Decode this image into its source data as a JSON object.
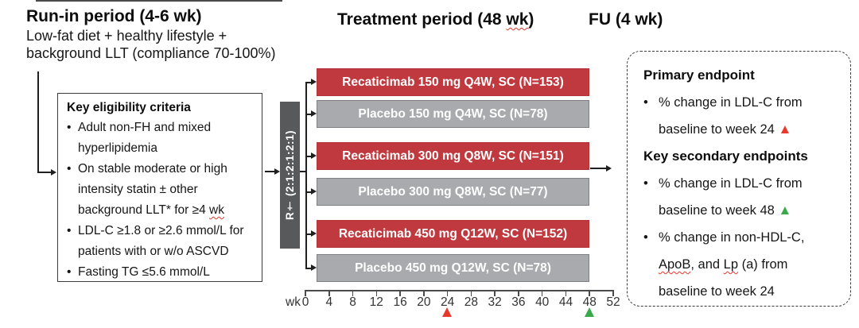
{
  "header": {
    "runin_title": "Run-in period (4-6 wk)",
    "runin_sub1": "Low-fat diet + healthy lifestyle +",
    "runin_sub2": "background LLT (compliance 70-100%)",
    "treatment_title_pre": "Treatment period (48 ",
    "treatment_title_sq": "wk",
    "treatment_title_post": ")",
    "fu_title": "FU (4 wk)"
  },
  "eligibility": {
    "title": "Key eligibility criteria",
    "bullets": [
      [
        {
          "t": "Adult non-FH and mixed hyperlipidemia"
        }
      ],
      [
        {
          "t": "On stable moderate or high intensity statin ± other background LLT* for ≥4 "
        },
        {
          "t": "wk",
          "sq": true
        }
      ],
      [
        {
          "t": "LDL-C ≥1.8 or ≥2.6 mmol/L for patients with or w/o ASCVD"
        }
      ],
      [
        {
          "t": "Fasting TG ≤5.6 mmol/L"
        }
      ]
    ]
  },
  "randomization": {
    "label": "R† (2:1:2:1:2:1)"
  },
  "arms": [
    {
      "label": "Recaticimab 150 mg Q4W, SC (N=153)",
      "type": "active"
    },
    {
      "label": "Placebo 150 mg Q4W, SC (N=78)",
      "type": "placebo"
    },
    {
      "label": "Recaticimab 300 mg Q8W, SC (N=151)",
      "type": "active"
    },
    {
      "label": "Placebo 300 mg Q8W, SC (N=77)",
      "type": "placebo"
    },
    {
      "label": "Recaticimab 450 mg Q12W, SC (N=152)",
      "type": "active"
    },
    {
      "label": "Placebo 450 mg Q12W, SC (N=78)",
      "type": "placebo"
    }
  ],
  "axis": {
    "unit": "wk",
    "weeks": [
      0,
      4,
      8,
      12,
      16,
      20,
      24,
      28,
      32,
      36,
      40,
      44,
      48,
      52
    ],
    "markers": [
      {
        "week": 24,
        "color": "#e8392e",
        "name": "primary-endpoint-marker"
      },
      {
        "week": 48,
        "color": "#3aa94c",
        "name": "secondary-endpoint-marker"
      }
    ]
  },
  "endpoints": {
    "lines": [
      {
        "type": "heading",
        "segments": [
          {
            "t": "Primary endpoint"
          }
        ]
      },
      {
        "type": "bullet",
        "segments": [
          {
            "t": "% change in LDL-C from baseline to week 24 "
          },
          {
            "t": "▲",
            "color": "#e8392e",
            "name": "red-triangle-icon"
          }
        ]
      },
      {
        "type": "heading",
        "segments": [
          {
            "t": "Key secondary endpoints"
          }
        ]
      },
      {
        "type": "bullet",
        "segments": [
          {
            "t": "% change in LDL-C from baseline to week 48 "
          },
          {
            "t": "▲",
            "color": "#3aa94c",
            "name": "green-triangle-icon"
          }
        ]
      },
      {
        "type": "bullet",
        "segments": [
          {
            "t": "% change in non-HDL-C, "
          },
          {
            "t": "ApoB",
            "sq": true
          },
          {
            "t": ", and "
          },
          {
            "t": "Lp",
            "sq": true
          },
          {
            "t": " (a) from baseline to week 24"
          }
        ]
      }
    ]
  },
  "colors": {
    "active_arm": "#c0393e",
    "placebo_arm": "#a8aaad",
    "randomization_bar": "#58595b",
    "marker_primary": "#e8392e",
    "marker_secondary": "#3aa94c",
    "connector": "#1f1f1f"
  }
}
